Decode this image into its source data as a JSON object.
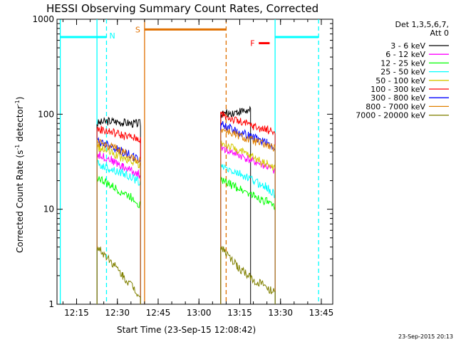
{
  "chart_data": {
    "type": "line",
    "title": "HESSI Observing Summary Count Rates, Corrected",
    "xlabel": "Start Time (23-Sep-15 12:08:42)",
    "ylabel_main": "Corrected Count Rate (s",
    "ylabel_sup1": "-1",
    "ylabel_mid": " detector",
    "ylabel_sup2": "-1",
    "ylabel_end": ")",
    "y_scale": "log",
    "ylim": [
      1,
      1000
    ],
    "xlim_minutes": [
      12.13,
      13.82
    ],
    "y_ticks": [
      {
        "value": 1,
        "label": "1"
      },
      {
        "value": 10,
        "label": "10"
      },
      {
        "value": 100,
        "label": "100"
      },
      {
        "value": 1000,
        "label": "1000"
      }
    ],
    "x_ticks": [
      {
        "value": "12:15",
        "label": "12:15"
      },
      {
        "value": "12:30",
        "label": "12:30"
      },
      {
        "value": "12:45",
        "label": "12:45"
      },
      {
        "value": "13:00",
        "label": "13:00"
      },
      {
        "value": "13:15",
        "label": "13:15"
      },
      {
        "value": "13:30",
        "label": "13:30"
      },
      {
        "value": "13:45",
        "label": "13:45"
      }
    ],
    "legend": {
      "header1": "Det 1,3,5,6,7,",
      "header2": "Att 0",
      "placement": "top-right-outside"
    },
    "series": [
      {
        "name": "3 - 6 keV",
        "color": "#000000",
        "segments": [
          [
            [
              "12:22:30",
              80
            ],
            [
              "12:27",
              85
            ],
            [
              "12:32",
              82
            ],
            [
              "12:36",
              80
            ],
            [
              "12:38:30",
              80
            ]
          ],
          [
            [
              "13:08",
              100
            ],
            [
              "13:11",
              102
            ],
            [
              "13:14",
              106
            ],
            [
              "13:17",
              108
            ],
            [
              "13:19",
              108
            ]
          ]
        ]
      },
      {
        "name": "6 - 12 keV",
        "color": "#ff00ff",
        "segments": [
          [
            [
              "12:22:30",
              38
            ],
            [
              "12:27",
              34
            ],
            [
              "12:32",
              28
            ],
            [
              "12:36",
              25
            ],
            [
              "12:38:30",
              23
            ]
          ],
          [
            [
              "13:08",
              45
            ],
            [
              "13:14",
              38
            ],
            [
              "13:20",
              32
            ],
            [
              "13:25",
              28
            ],
            [
              "13:28",
              25
            ]
          ]
        ]
      },
      {
        "name": "12 - 25 keV",
        "color": "#00ff00",
        "segments": [
          [
            [
              "12:22:30",
              22
            ],
            [
              "12:27",
              18
            ],
            [
              "12:32",
              15
            ],
            [
              "12:36",
              13
            ],
            [
              "12:38:30",
              11
            ]
          ],
          [
            [
              "13:08",
              20
            ],
            [
              "13:14",
              17
            ],
            [
              "13:20",
              14
            ],
            [
              "13:25",
              12
            ],
            [
              "13:28",
              10
            ]
          ]
        ]
      },
      {
        "name": "25 - 50 keV",
        "color": "#00ffff",
        "segments": [
          [
            [
              "12:22:30",
              30
            ],
            [
              "12:27",
              27
            ],
            [
              "12:32",
              24
            ],
            [
              "12:36",
              21
            ],
            [
              "12:38:30",
              19
            ]
          ],
          [
            [
              "13:08",
              28
            ],
            [
              "13:14",
              24
            ],
            [
              "13:20",
              20
            ],
            [
              "13:25",
              17
            ],
            [
              "13:28",
              14
            ]
          ]
        ]
      },
      {
        "name": "50 - 100 keV",
        "color": "#d4c800",
        "segments": [
          [
            [
              "12:22:30",
              45
            ],
            [
              "12:27",
              40
            ],
            [
              "12:32",
              34
            ],
            [
              "12:36",
              31
            ],
            [
              "12:38:30",
              29
            ]
          ],
          [
            [
              "13:08",
              50
            ],
            [
              "13:14",
              42
            ],
            [
              "13:20",
              35
            ],
            [
              "13:25",
              30
            ],
            [
              "13:28",
              27
            ]
          ]
        ]
      },
      {
        "name": "100 - 300 keV",
        "color": "#ff0000",
        "segments": [
          [
            [
              "12:22:30",
              70
            ],
            [
              "12:27",
              66
            ],
            [
              "12:32",
              60
            ],
            [
              "12:36",
              56
            ],
            [
              "12:38:30",
              55
            ]
          ],
          [
            [
              "13:08",
              100
            ],
            [
              "13:14",
              85
            ],
            [
              "13:20",
              75
            ],
            [
              "13:25",
              68
            ],
            [
              "13:28",
              65
            ]
          ]
        ]
      },
      {
        "name": "300 - 800 keV",
        "color": "#0000ff",
        "segments": [
          [
            [
              "12:22:30",
              52
            ],
            [
              "12:27",
              48
            ],
            [
              "12:32",
              40
            ],
            [
              "12:36",
              36
            ],
            [
              "12:38:30",
              32
            ]
          ],
          [
            [
              "13:08",
              80
            ],
            [
              "13:14",
              66
            ],
            [
              "13:20",
              57
            ],
            [
              "13:25",
              50
            ],
            [
              "13:28",
              45
            ]
          ]
        ]
      },
      {
        "name": "800 - 7000 keV",
        "color": "#e08000",
        "segments": [
          [
            [
              "12:22:30",
              50
            ],
            [
              "12:27",
              46
            ],
            [
              "12:32",
              40
            ],
            [
              "12:36",
              35
            ],
            [
              "12:38:30",
              32
            ]
          ],
          [
            [
              "13:08",
              70
            ],
            [
              "13:14",
              60
            ],
            [
              "13:20",
              52
            ],
            [
              "13:25",
              47
            ],
            [
              "13:28",
              43
            ]
          ]
        ]
      },
      {
        "name": "7000 - 20000 keV",
        "color": "#808000",
        "segments": [
          [
            [
              "12:22:30",
              4
            ],
            [
              "12:27",
              3
            ],
            [
              "12:32",
              2
            ],
            [
              "12:36",
              1.5
            ],
            [
              "12:38:30",
              1.2
            ]
          ],
          [
            [
              "13:08",
              4
            ],
            [
              "13:14",
              2.5
            ],
            [
              "13:20",
              1.8
            ],
            [
              "13:25",
              1.5
            ],
            [
              "13:28",
              1.3
            ]
          ]
        ]
      }
    ],
    "flags": [
      {
        "label": "N",
        "color": "#00ffff",
        "bars": [
          [
            "12:09",
            "12:26"
          ],
          [
            "13:28",
            "13:44"
          ]
        ],
        "level": 650
      },
      {
        "label": "S",
        "color": "#e07000",
        "bars": [
          [
            "12:40",
            "13:10"
          ]
        ],
        "level": 780
      },
      {
        "label": "F",
        "color": "#ff0000",
        "bars": [
          [
            "13:22",
            "13:26"
          ]
        ],
        "level": 560
      }
    ],
    "vertical_lines": [
      {
        "time": "12:09",
        "color": "#00ffff",
        "style": "solid"
      },
      {
        "time": "12:22:30",
        "color": "#00ffff",
        "style": "solid"
      },
      {
        "time": "12:26",
        "color": "#00ffff",
        "style": "dashed"
      },
      {
        "time": "12:40",
        "color": "#e07000",
        "style": "solid"
      },
      {
        "time": "13:10",
        "color": "#e07000",
        "style": "dashed"
      },
      {
        "time": "13:28",
        "color": "#00ffff",
        "style": "solid"
      },
      {
        "time": "13:44",
        "color": "#00ffff",
        "style": "dashed"
      }
    ],
    "grid": false,
    "timestamp": "23-Sep-2015 20:13"
  }
}
